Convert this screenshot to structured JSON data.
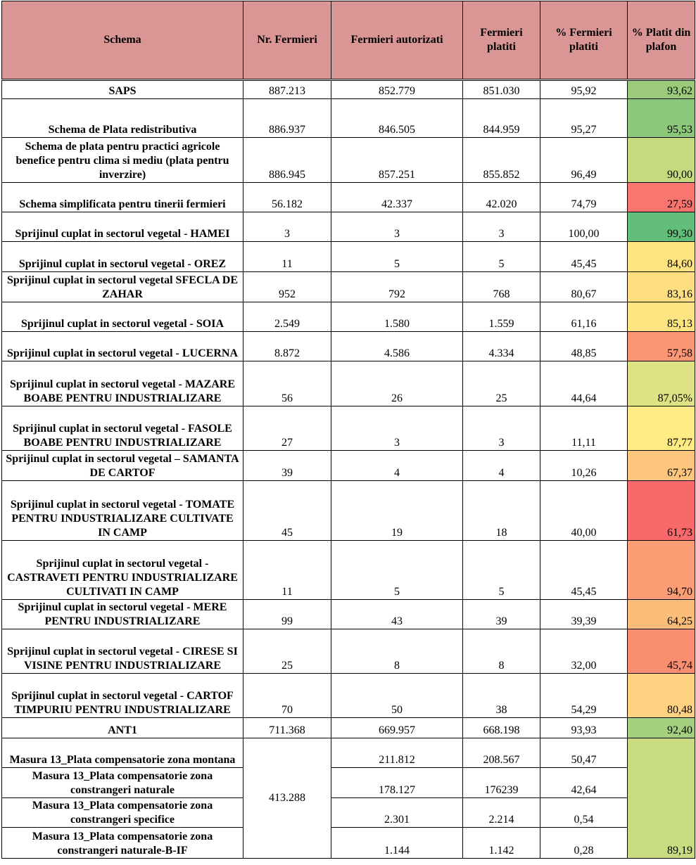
{
  "table": {
    "headers": [
      "Schema",
      "Nr. Fermieri",
      "Fermieri autorizati",
      "Fermieri platiti",
      "% Fermieri platiti",
      "% Platit din plafon"
    ],
    "header_fill": "#d99694",
    "rows": [
      {
        "cells": [
          "SAPS",
          "887.213",
          "852.779",
          "851.030",
          "95,92",
          "93,62"
        ],
        "fill": "#9bcb7a"
      },
      {
        "cells": [
          "Schema de Plata redistributiva",
          "886.937",
          "846.505",
          "844.959",
          "95,27",
          "95,53"
        ],
        "fill": "#8dc77b"
      },
      {
        "cells": [
          "Schema de plata pentru practici agricole benefice pentru clima si mediu (plata pentru inverzire)",
          "886.945",
          "857.251",
          "855.852",
          "96,49",
          "90,00"
        ],
        "fill": "#c5d97d"
      },
      {
        "cells": [
          "Schema simplificata pentru tinerii fermieri",
          "56.182",
          "42.337",
          "42.020",
          "74,79",
          "27,59"
        ],
        "fill": "#f8766f"
      },
      {
        "cells": [
          "Sprijinul cuplat in sectorul vegetal - HAMEI",
          "3",
          "3",
          "3",
          "100,00",
          "99,30"
        ],
        "fill": "#63be7b"
      },
      {
        "cells": [
          "Sprijinul cuplat in sectorul vegetal - OREZ",
          "11",
          "5",
          "5",
          "45,45",
          "84,60"
        ],
        "fill": "#fde47f"
      },
      {
        "cells": [
          "Sprijinul cuplat in sectorul vegetal SFECLA DE ZAHAR",
          "952",
          "792",
          "768",
          "80,67",
          "83,16"
        ],
        "fill": "#fede80"
      },
      {
        "cells": [
          "Sprijinul cuplat in sectorul vegetal - SOIA",
          "2.549",
          "1.580",
          "1.559",
          "61,16",
          "85,13"
        ],
        "fill": "#fce581"
      },
      {
        "cells": [
          "Sprijinul cuplat in sectorul vegetal - LUCERNA",
          "8.872",
          "4.586",
          "4.334",
          "48,85",
          "57,58"
        ],
        "fill": "#fa9673"
      },
      {
        "cells": [
          "Sprijinul cuplat in sectorul vegetal - MAZARE BOABE PENTRU INDUSTRIALIZARE",
          "56",
          "26",
          "25",
          "44,64",
          "87,05%"
        ],
        "fill": "#dfe283"
      },
      {
        "cells": [
          "Sprijinul cuplat in sectorul vegetal - FASOLE BOABE PENTRU INDUSTRIALIZARE",
          "27",
          "3",
          "3",
          "11,11",
          "87,77"
        ],
        "fill": "#ffeb84"
      },
      {
        "cells": [
          "Sprijinul cuplat in sectorul vegetal – SAMANTA DE CARTOF",
          "39",
          "4",
          "4",
          "10,26",
          "67,37"
        ],
        "fill": "#fdc57d"
      },
      {
        "cells": [
          "Sprijinul cuplat in sectorul vegetal - TOMATE PENTRU INDUSTRIALIZARE CULTIVATE IN CAMP",
          "45",
          "19",
          "18",
          "40,00",
          "61,73"
        ],
        "fill": "#f8696b"
      },
      {
        "cells": [
          "Sprijinul cuplat in sectorul vegetal - CASTRAVETI PENTRU INDUSTRIALIZARE CULTIVATI IN CAMP",
          "11",
          "5",
          "5",
          "45,45",
          "94,70"
        ],
        "fill": "#fb9d75"
      },
      {
        "cells": [
          "Sprijinul cuplat in sectorul vegetal - MERE PENTRU INDUSTRIALIZARE",
          "99",
          "43",
          "39",
          "39,39",
          "64,25"
        ],
        "fill": "#fcbd7b"
      },
      {
        "cells": [
          "Sprijinul cuplat in sectorul vegetal - CIRESE SI VISINE PENTRU INDUSTRIALIZARE",
          "25",
          "8",
          "8",
          "32,00",
          "45,74"
        ],
        "fill": "#f98f70"
      },
      {
        "cells": [
          "Sprijinul cuplat in sectorul vegetal - CARTOF TIMPURIU PENTRU INDUSTRIALIZARE",
          "70",
          "50",
          "38",
          "54,29",
          "80,48"
        ],
        "fill": "#fed280"
      },
      {
        "cells": [
          "ANT1",
          "711.368",
          "669.957",
          "668.198",
          "93,93",
          "92,40"
        ],
        "fill": "#a5d07f"
      },
      {
        "cells": [
          "Masura 13_Plata compensatorie zona montana",
          "413.288",
          "211.812",
          "208.567",
          "50,47",
          "89,19"
        ],
        "fill": "#c9dc81"
      },
      {
        "cells": [
          "Masura 13_Plata compensatorie zona constrangeri naturale",
          "178.127",
          "176239",
          "42,64"
        ]
      },
      {
        "cells": [
          "Masura 13_Plata compensatorie zona constrangeri specifice",
          "2.301",
          "2.214",
          "0,54"
        ]
      },
      {
        "cells": [
          "Masura 13_Plata compensatorie zona constrangeri naturale-B-IF",
          "1.144",
          "1.142",
          "0,28"
        ]
      }
    ]
  }
}
